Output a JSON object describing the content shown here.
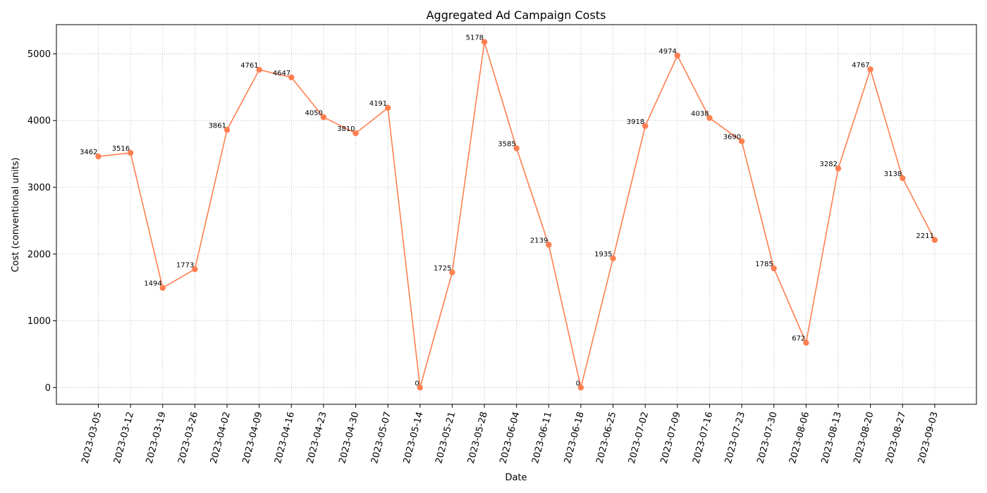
{
  "chart_data": {
    "type": "line",
    "title": "Aggregated Ad Campaign Costs",
    "xlabel": "Date",
    "ylabel": "Cost (conventional units)",
    "x": [
      "2023-03-05",
      "2023-03-12",
      "2023-03-19",
      "2023-03-26",
      "2023-04-02",
      "2023-04-09",
      "2023-04-16",
      "2023-04-23",
      "2023-04-30",
      "2023-05-07",
      "2023-05-14",
      "2023-05-21",
      "2023-05-28",
      "2023-06-04",
      "2023-06-11",
      "2023-06-18",
      "2023-06-25",
      "2023-07-02",
      "2023-07-09",
      "2023-07-16",
      "2023-07-23",
      "2023-07-30",
      "2023-08-06",
      "2023-08-13",
      "2023-08-20",
      "2023-08-27",
      "2023-09-03"
    ],
    "values": [
      3462,
      3516,
      1494,
      1773,
      3861,
      4761,
      4647,
      4050,
      3810,
      4191,
      0,
      1725,
      5178,
      3585,
      2139,
      0,
      1935,
      3918,
      4974,
      4038,
      3690,
      1785,
      672,
      3282,
      4767,
      3138,
      2211
    ],
    "yticks": [
      0,
      1000,
      2000,
      3000,
      4000,
      5000
    ],
    "ylim": [
      -250,
      5437
    ],
    "grid": true,
    "legend": "none",
    "line_color": "#ff7f50",
    "marker_color": "#ff7f50"
  }
}
